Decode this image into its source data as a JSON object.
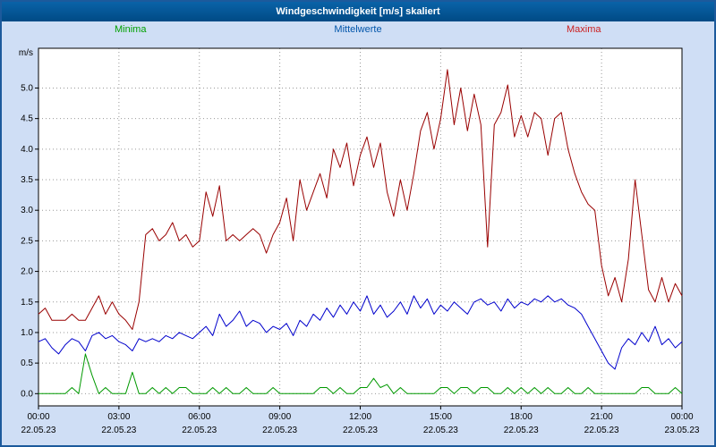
{
  "window": {
    "title": "Windgeschwindigkeit [m/s] skaliert"
  },
  "legend": [
    {
      "label": "Minima",
      "color": "#00a000"
    },
    {
      "label": "Mittelwerte",
      "color": "#0055aa"
    },
    {
      "label": "Maxima",
      "color": "#cc2020"
    }
  ],
  "chart_data": {
    "type": "line",
    "title": "Windgeschwindigkeit [m/s] skaliert",
    "ylabel": "m/s",
    "ylim": [
      -0.2,
      5.65
    ],
    "xlim_hours": [
      0,
      24
    ],
    "grid": true,
    "y_ticks": [
      0.0,
      0.5,
      1.0,
      1.5,
      2.0,
      2.5,
      3.0,
      3.5,
      4.0,
      4.5,
      5.0
    ],
    "x_ticks": [
      {
        "hour": 0,
        "time": "00:00",
        "date": "22.05.23"
      },
      {
        "hour": 3,
        "time": "03:00",
        "date": "22.05.23"
      },
      {
        "hour": 6,
        "time": "06:00",
        "date": "22.05.23"
      },
      {
        "hour": 9,
        "time": "09:00",
        "date": "22.05.23"
      },
      {
        "hour": 12,
        "time": "12:00",
        "date": "22.05.23"
      },
      {
        "hour": 15,
        "time": "15:00",
        "date": "22.05.23"
      },
      {
        "hour": 18,
        "time": "18:00",
        "date": "22.05.23"
      },
      {
        "hour": 21,
        "time": "21:00",
        "date": "22.05.23"
      },
      {
        "hour": 24,
        "time": "00:00",
        "date": "23.05.23"
      }
    ],
    "x_start_hour": 0,
    "x_step_hours": 0.25,
    "series": [
      {
        "name": "Minima",
        "color": "#009900",
        "values": [
          0,
          0,
          0,
          0,
          0,
          0.1,
          0,
          0.65,
          0.3,
          0,
          0.1,
          0,
          0,
          0,
          0.35,
          0,
          0,
          0.1,
          0,
          0.1,
          0,
          0.1,
          0.1,
          0,
          0,
          0,
          0.1,
          0,
          0.1,
          0,
          0,
          0.1,
          0,
          0,
          0,
          0.1,
          0,
          0,
          0,
          0,
          0,
          0,
          0.1,
          0.1,
          0,
          0.1,
          0,
          0,
          0.1,
          0.1,
          0.25,
          0.1,
          0.15,
          0,
          0.1,
          0,
          0,
          0,
          0,
          0,
          0.1,
          0.1,
          0,
          0.1,
          0.1,
          0,
          0.1,
          0.1,
          0,
          0,
          0.1,
          0,
          0.1,
          0,
          0.1,
          0,
          0.1,
          0,
          0,
          0.1,
          0,
          0,
          0.1,
          0,
          0,
          0,
          0,
          0,
          0,
          0,
          0.1,
          0.1,
          0,
          0,
          0,
          0.1,
          0
        ]
      },
      {
        "name": "Mittelwerte",
        "color": "#0000cc",
        "values": [
          0.85,
          0.9,
          0.75,
          0.65,
          0.8,
          0.9,
          0.85,
          0.7,
          0.95,
          1.0,
          0.9,
          0.95,
          0.85,
          0.8,
          0.7,
          0.9,
          0.85,
          0.9,
          0.85,
          0.95,
          0.9,
          1.0,
          0.95,
          0.9,
          1.0,
          1.1,
          0.95,
          1.3,
          1.1,
          1.2,
          1.35,
          1.1,
          1.2,
          1.15,
          1.0,
          1.1,
          1.05,
          1.15,
          0.95,
          1.2,
          1.1,
          1.3,
          1.2,
          1.4,
          1.25,
          1.45,
          1.3,
          1.5,
          1.35,
          1.6,
          1.3,
          1.45,
          1.25,
          1.35,
          1.5,
          1.3,
          1.6,
          1.4,
          1.55,
          1.3,
          1.45,
          1.35,
          1.5,
          1.4,
          1.3,
          1.5,
          1.55,
          1.45,
          1.5,
          1.35,
          1.55,
          1.4,
          1.5,
          1.45,
          1.55,
          1.5,
          1.6,
          1.5,
          1.55,
          1.45,
          1.4,
          1.3,
          1.1,
          0.9,
          0.7,
          0.5,
          0.4,
          0.75,
          0.9,
          0.8,
          1.0,
          0.85,
          1.1,
          0.8,
          0.9,
          0.75,
          0.85
        ]
      },
      {
        "name": "Maxima",
        "color": "#990000",
        "values": [
          1.3,
          1.4,
          1.2,
          1.2,
          1.2,
          1.3,
          1.2,
          1.2,
          1.4,
          1.6,
          1.3,
          1.5,
          1.3,
          1.2,
          1.05,
          1.5,
          2.6,
          2.7,
          2.5,
          2.6,
          2.8,
          2.5,
          2.6,
          2.4,
          2.5,
          3.3,
          2.9,
          3.4,
          2.5,
          2.6,
          2.5,
          2.6,
          2.7,
          2.6,
          2.3,
          2.6,
          2.8,
          3.2,
          2.5,
          3.5,
          3.0,
          3.3,
          3.6,
          3.2,
          4.0,
          3.7,
          4.1,
          3.4,
          3.9,
          4.2,
          3.7,
          4.1,
          3.3,
          2.9,
          3.5,
          3.0,
          3.6,
          4.3,
          4.6,
          4.0,
          4.5,
          5.3,
          4.4,
          5.0,
          4.3,
          4.9,
          4.4,
          2.4,
          4.4,
          4.6,
          5.05,
          4.2,
          4.55,
          4.2,
          4.6,
          4.5,
          3.9,
          4.5,
          4.6,
          4.0,
          3.6,
          3.3,
          3.1,
          3.0,
          2.1,
          1.6,
          1.9,
          1.5,
          2.2,
          3.5,
          2.6,
          1.7,
          1.5,
          1.9,
          1.5,
          1.8,
          1.6
        ]
      }
    ]
  }
}
